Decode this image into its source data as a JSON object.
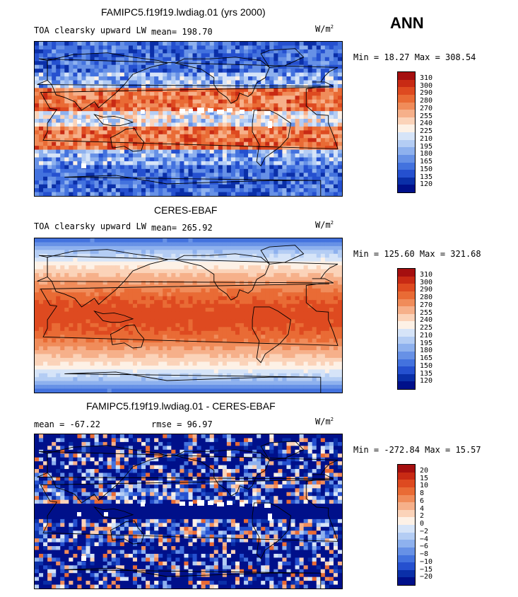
{
  "season": "ANN",
  "unit_main": "W/m",
  "unit_sup": "2",
  "panels": [
    {
      "title": "FAMIPC5.f19f19.lwdiag.01 (yrs 2000)",
      "variable": "TOA clearsky upward LW",
      "stat_text": "mean= 198.70",
      "range_text": "Min =  18.27 Max = 308.54",
      "levels": [
        "310",
        "300",
        "290",
        "280",
        "270",
        "255",
        "240",
        "225",
        "210",
        "195",
        "180",
        "165",
        "150",
        "135",
        "120"
      ],
      "colors": [
        "#a50f0f",
        "#c82a14",
        "#de4a20",
        "#e96b35",
        "#f08c5a",
        "#f6b08a",
        "#fbd3b9",
        "#fdf1e6",
        "#d6e4f8",
        "#b4cdf4",
        "#8eb1ee",
        "#6791e6",
        "#4372de",
        "#2550cf",
        "#0a2fa8",
        "#00108a"
      ],
      "mode": "model"
    },
    {
      "title": "CERES-EBAF",
      "variable": "TOA clearsky upward LW",
      "stat_text": "mean= 265.92",
      "range_text": "Min = 125.60 Max = 321.68",
      "levels": [
        "310",
        "300",
        "290",
        "280",
        "270",
        "255",
        "240",
        "225",
        "210",
        "195",
        "180",
        "165",
        "150",
        "135",
        "120"
      ],
      "colors": [
        "#a50f0f",
        "#c82a14",
        "#de4a20",
        "#e96b35",
        "#f08c5a",
        "#f6b08a",
        "#fbd3b9",
        "#fdf1e6",
        "#d6e4f8",
        "#b4cdf4",
        "#8eb1ee",
        "#6791e6",
        "#4372de",
        "#2550cf",
        "#0a2fa8",
        "#00108a"
      ],
      "mode": "obs"
    },
    {
      "title": "FAMIPC5.f19f19.lwdiag.01 - CERES-EBAF",
      "variable": "",
      "mean_text": "mean = -67.22",
      "rmse_text": "rmse =  96.97",
      "range_text": "Min = -272.84 Max =  15.57",
      "levels": [
        "20",
        "15",
        "10",
        "8",
        "6",
        "4",
        "2",
        "0",
        "−2",
        "−4",
        "−6",
        "−8",
        "−10",
        "−15",
        "−20"
      ],
      "colors": [
        "#a50f0f",
        "#c82a14",
        "#de4a20",
        "#e96b35",
        "#f08c5a",
        "#f6b08a",
        "#fbd3b9",
        "#fdf1e6",
        "#d6e4f8",
        "#b4cdf4",
        "#8eb1ee",
        "#6791e6",
        "#4372de",
        "#2550cf",
        "#0a2fa8",
        "#00108a"
      ],
      "mode": "diff"
    }
  ]
}
